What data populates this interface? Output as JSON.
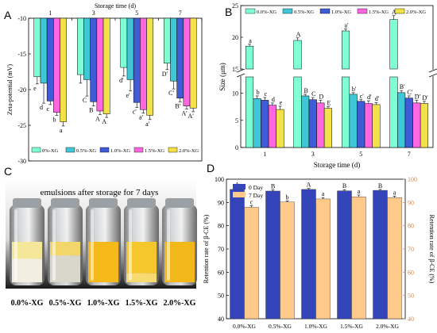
{
  "panels": {
    "A": "A",
    "B": "B",
    "C": "C",
    "D": "D"
  },
  "colors": {
    "series": [
      "#7fffd4",
      "#3ec7d6",
      "#3f5bd6",
      "#ff66e0",
      "#f2e24a"
    ],
    "d_day0": "#3345b8",
    "d_day7": "#ffc98a",
    "d_right_axis": "#d9874a"
  },
  "chart_data": [
    {
      "panel": "A",
      "type": "bar",
      "xlabel": "Storage time (d)",
      "ylabel": "Zeta-potential (mV)",
      "categories": [
        "1",
        "3",
        "5",
        "7"
      ],
      "ylim": [
        -30,
        -10
      ],
      "yticks": [
        "-10",
        "-15",
        "-20",
        "-25",
        "-30"
      ],
      "legend_placement": "bottom",
      "series": [
        {
          "name": "0%-XG",
          "values": [
            -18.2,
            -17.9,
            -16.9,
            -16.3
          ],
          "errors": [
            1.0,
            1.2,
            1.2,
            0.9
          ],
          "labels": [
            "e",
            "",
            "d'",
            "D'"
          ]
        },
        {
          "name": "0.5%-XG",
          "values": [
            -19.1,
            -18.6,
            -18.6,
            -18.8
          ],
          "errors": [
            2.8,
            2.3,
            1.6,
            1.1
          ],
          "labels": [
            "d",
            "C",
            "e'",
            "C'"
          ]
        },
        {
          "name": "1.0%-XG",
          "values": [
            -21.6,
            -21.7,
            -21.8,
            -21.2
          ],
          "errors": [
            0.5,
            0.6,
            0.7,
            0.5
          ],
          "labels": [
            "c",
            "B",
            "c'",
            "B'"
          ]
        },
        {
          "name": "1.5%-XG",
          "values": [
            -23.2,
            -23.0,
            -22.8,
            -22.3
          ],
          "errors": [
            0.4,
            0.5,
            0.5,
            0.4
          ],
          "labels": [
            "b",
            "A",
            "a'",
            "A'"
          ]
        },
        {
          "name": "2.0%-XG",
          "values": [
            -24.5,
            -23.4,
            -23.6,
            -22.6
          ],
          "errors": [
            0.6,
            0.5,
            0.6,
            0.5
          ],
          "labels": [
            "a",
            "A",
            "a'",
            "A'"
          ]
        }
      ]
    },
    {
      "panel": "B",
      "type": "bar",
      "xlabel": "Storage time (d)",
      "ylabel": "Size (μm)",
      "categories": [
        "1",
        "3",
        "5",
        "7"
      ],
      "ylim": [
        0,
        25
      ],
      "axis_break": [
        13,
        15
      ],
      "yticks": [
        "0",
        "5",
        "10",
        "15",
        "20",
        "25"
      ],
      "legend_placement": "top",
      "series": [
        {
          "name": "0.0%-XG",
          "values": [
            18.6,
            19.5,
            21.0,
            22.8
          ],
          "errors": [
            0.3,
            0.4,
            0.3,
            0.6
          ],
          "labels": [
            "a",
            "A",
            "a'",
            "A'"
          ]
        },
        {
          "name": "0.5%-XG",
          "values": [
            9.0,
            9.5,
            9.8,
            10.1
          ],
          "errors": [
            0.5,
            0.3,
            0.3,
            0.4
          ],
          "labels": [
            "b",
            "B",
            "b'",
            "B'"
          ]
        },
        {
          "name": "1.0%-XG",
          "values": [
            8.7,
            8.8,
            8.5,
            9.1
          ],
          "errors": [
            0.5,
            0.4,
            0.3,
            0.4
          ],
          "labels": [
            "c",
            "C",
            "c'",
            "C'"
          ]
        },
        {
          "name": "1.5%-XG",
          "values": [
            7.8,
            8.2,
            8.1,
            8.2
          ],
          "errors": [
            0.4,
            0.5,
            0.5,
            0.5
          ],
          "labels": [
            "d",
            "D",
            "d'",
            "D'"
          ]
        },
        {
          "name": "2.0%-XG",
          "values": [
            7.0,
            7.2,
            7.9,
            8.1
          ],
          "errors": [
            0.6,
            0.3,
            0.4,
            0.4
          ],
          "labels": [
            "e",
            "E",
            "d'",
            "D'"
          ]
        }
      ]
    },
    {
      "panel": "D",
      "type": "bar",
      "ylabel": "Retention rate of β-CE (%)",
      "ylabel_right": "Retention rate of β-CE (%)",
      "categories": [
        "0.0%-XG",
        "0.5%-XG",
        "1.0%-XG",
        "1.5%-XG",
        "2.0%-XG"
      ],
      "ylim": [
        40,
        100
      ],
      "yticks": [
        "40",
        "50",
        "60",
        "70",
        "80",
        "90",
        "100"
      ],
      "legend_placement": "top-left",
      "series": [
        {
          "name": "0 Day",
          "values": [
            95.6,
            94.9,
            95.6,
            95.0,
            95.2
          ],
          "errors": [
            0.5,
            0.5,
            0.4,
            0.5,
            0.4
          ],
          "labels": [
            "A",
            "B",
            "A",
            "B",
            "B"
          ]
        },
        {
          "name": "7 Day",
          "values": [
            87.9,
            90.2,
            91.5,
            92.4,
            92.1
          ],
          "errors": [
            0.7,
            0.5,
            0.6,
            0.8,
            0.6
          ],
          "labels": [
            "c",
            "b",
            "a",
            "a",
            "a"
          ]
        }
      ]
    }
  ],
  "photo": {
    "title": "emulsions after storage  for 7 days",
    "labels": [
      "0.0%-XG",
      "0.5%-XG",
      "1.0%-XG",
      "1.5%-XG",
      "2.0%-XG"
    ]
  }
}
